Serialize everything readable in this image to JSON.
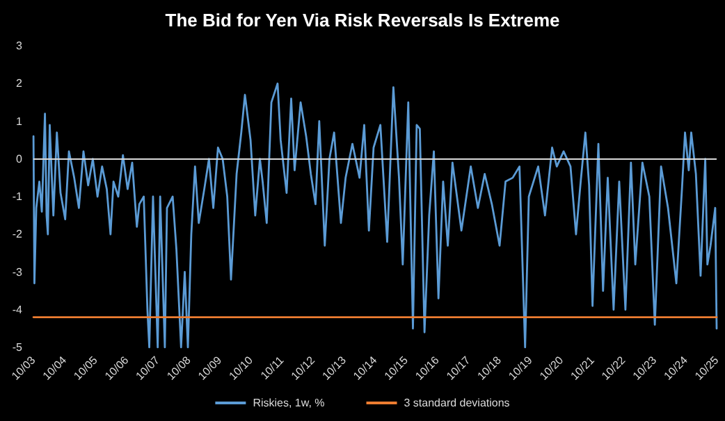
{
  "chart_data": {
    "type": "line",
    "title": "The Bid for Yen Via Risk Reversals Is Extreme",
    "xlim": [
      "2003-10-01",
      "2025-10-01"
    ],
    "xticks": [
      {
        "value": "2003-10-01",
        "label": "10/03"
      },
      {
        "value": "2004-10-01",
        "label": "10/04"
      },
      {
        "value": "2005-10-01",
        "label": "10/05"
      },
      {
        "value": "2006-10-01",
        "label": "10/06"
      },
      {
        "value": "2007-10-01",
        "label": "10/07"
      },
      {
        "value": "2008-10-01",
        "label": "10/08"
      },
      {
        "value": "2009-10-01",
        "label": "10/09"
      },
      {
        "value": "2010-10-01",
        "label": "10/10"
      },
      {
        "value": "2011-10-01",
        "label": "10/11"
      },
      {
        "value": "2012-10-01",
        "label": "10/12"
      },
      {
        "value": "2013-10-01",
        "label": "10/13"
      },
      {
        "value": "2014-10-01",
        "label": "10/14"
      },
      {
        "value": "2015-10-01",
        "label": "10/15"
      },
      {
        "value": "2016-10-01",
        "label": "10/16"
      },
      {
        "value": "2017-10-01",
        "label": "10/17"
      },
      {
        "value": "2018-10-01",
        "label": "10/18"
      },
      {
        "value": "2019-10-01",
        "label": "10/19"
      },
      {
        "value": "2020-10-01",
        "label": "10/20"
      },
      {
        "value": "2021-10-01",
        "label": "10/21"
      },
      {
        "value": "2022-10-01",
        "label": "10/22"
      },
      {
        "value": "2023-10-01",
        "label": "10/23"
      },
      {
        "value": "2024-10-01",
        "label": "10/24"
      },
      {
        "value": "2025-10-01",
        "label": "10/25"
      }
    ],
    "ylim": [
      -5,
      3
    ],
    "yticks": [
      -5,
      -4,
      -3,
      -2,
      -1,
      0,
      1,
      2,
      3
    ],
    "grid": false,
    "legend": "bottom",
    "marker": "none",
    "line_style": "solid",
    "ref_lines": [
      {
        "axis": "y",
        "value": 0,
        "label": null,
        "color": "#d9d9d9"
      }
    ],
    "series": [
      {
        "name": "Riskies, 1w, %",
        "color": "#5b9bd5",
        "x": [
          "2003-10-02",
          "2003-10-13",
          "2003-11-04",
          "2003-12-10",
          "2004-01-08",
          "2004-02-14",
          "2004-03-04",
          "2004-03-19",
          "2004-04-10",
          "2004-05-23",
          "2004-07-03",
          "2004-08-15",
          "2004-10-09",
          "2004-11-22",
          "2005-01-23",
          "2005-03-19",
          "2005-05-12",
          "2005-07-06",
          "2005-08-30",
          "2005-10-24",
          "2005-12-17",
          "2006-02-10",
          "2006-03-26",
          "2006-04-30",
          "2006-06-25",
          "2006-08-19",
          "2006-10-13",
          "2006-12-06",
          "2007-01-30",
          "2007-02-28",
          "2007-04-21",
          "2007-06-03",
          "2007-06-25",
          "2007-08-08",
          "2007-10-02",
          "2007-10-31",
          "2007-12-25",
          "2008-01-19",
          "2008-03-26",
          "2008-05-09",
          "2008-07-03",
          "2008-08-15",
          "2008-09-21",
          "2008-10-31",
          "2008-12-14",
          "2009-01-27",
          "2009-04-02",
          "2009-05-27",
          "2009-07-17",
          "2009-09-10",
          "2009-11-04",
          "2009-12-28",
          "2010-02-10",
          "2010-04-17",
          "2010-06-11",
          "2010-07-24",
          "2010-09-28",
          "2010-11-22",
          "2011-01-16",
          "2011-02-17",
          "2011-04-06",
          "2011-05-31",
          "2011-08-12",
          "2011-09-17",
          "2011-11-26",
          "2012-01-19",
          "2012-02-28",
          "2012-05-09",
          "2012-07-13",
          "2012-09-06",
          "2012-10-31",
          "2012-12-14",
          "2013-02-17",
          "2013-04-13",
          "2013-06-07",
          "2013-08-26",
          "2013-10-20",
          "2014-01-08",
          "2014-04-02",
          "2014-05-27",
          "2014-07-21",
          "2014-09-14",
          "2014-12-03",
          "2015-02-21",
          "2015-05-05",
          "2015-07-10",
          "2015-08-23",
          "2015-10-27",
          "2015-12-21",
          "2016-02-03",
          "2016-03-11",
          "2016-05-05",
          "2016-06-29",
          "2016-08-23",
          "2016-10-16",
          "2016-12-10",
          "2017-02-03",
          "2017-03-30",
          "2017-07-13",
          "2017-10-31",
          "2018-01-23",
          "2018-04-13",
          "2018-07-06",
          "2018-10-05",
          "2018-12-14",
          "2019-03-08",
          "2019-05-27",
          "2019-08-01",
          "2019-09-14",
          "2020-01-02",
          "2020-03-22",
          "2020-06-14",
          "2020-08-08",
          "2020-10-27",
          "2021-01-16",
          "2021-03-22",
          "2021-05-16",
          "2021-07-10",
          "2021-08-23",
          "2021-10-02",
          "2021-12-10",
          "2022-02-03",
          "2022-03-30",
          "2022-06-07",
          "2022-08-12",
          "2022-10-24",
          "2022-12-28",
          "2023-02-17",
          "2023-05-12",
          "2023-08-01",
          "2023-10-05",
          "2023-12-17",
          "2024-03-08",
          "2024-06-14",
          "2024-08-19",
          "2024-09-24",
          "2024-11-07",
          "2024-12-06",
          "2025-01-30",
          "2025-03-26",
          "2025-05-20",
          "2025-06-14",
          "2025-07-21",
          "2025-09-14",
          "2025-10-01"
        ],
        "values": [
          0.6,
          -3.3,
          -1.3,
          -0.6,
          -1.4,
          1.2,
          -1.5,
          -2.0,
          0.9,
          -1.5,
          0.7,
          -0.9,
          -1.6,
          0.2,
          -0.5,
          -1.3,
          0.2,
          -0.7,
          0,
          -1.0,
          -0.2,
          -0.8,
          -2.0,
          -0.6,
          -1.0,
          0.1,
          -0.8,
          -0.1,
          -1.8,
          -1.2,
          -1.0,
          -4.0,
          -5,
          -1.0,
          -5,
          -1.0,
          -5,
          -1.3,
          -1.0,
          -2.4,
          -5,
          -3.0,
          -5,
          -2.0,
          -0.2,
          -1.7,
          -0.8,
          0.0,
          -1.3,
          0.3,
          0,
          -1.0,
          -3.2,
          -0.4,
          0.7,
          1.7,
          0.5,
          -1.5,
          0.0,
          -0.6,
          -1.7,
          1.5,
          2.0,
          0.5,
          -0.9,
          1.6,
          -0.3,
          1.5,
          0.6,
          -0.4,
          -1.2,
          1.0,
          -2.3,
          0.0,
          0.7,
          -1.7,
          -0.5,
          0.4,
          -0.5,
          0.9,
          -1.9,
          0.3,
          0.9,
          -2.2,
          1.9,
          -0.5,
          -2.8,
          1.5,
          -4.5,
          0.9,
          0.8,
          -4.6,
          -1.5,
          0.2,
          -3.7,
          -0.6,
          -2.3,
          -0.1,
          -1.9,
          -0.2,
          -1.3,
          -0.4,
          -1.2,
          -2.3,
          -0.6,
          -0.5,
          -0.2,
          -5.0,
          -1.0,
          -0.2,
          -1.5,
          0.3,
          -0.2,
          0.2,
          -0.2,
          -2.0,
          -0.6,
          0.7,
          -0.7,
          -3.9,
          0.4,
          -3.5,
          -0.5,
          -4.0,
          -0.6,
          -4.0,
          -0.1,
          -2.8,
          -0.1,
          -1.0,
          -4.4,
          -0.2,
          -1.3,
          -3.3,
          -0.8,
          0.7,
          -0.3,
          0.7,
          -0.4,
          -3.1,
          0.0,
          -2.8,
          -2.3,
          -1.3,
          -4.5
        ]
      },
      {
        "name": "3 standard deviations",
        "color": "#ed7d31",
        "x": [
          "2003-10-02",
          "2025-10-01"
        ],
        "values": [
          -4.2,
          -4.2
        ]
      }
    ]
  }
}
